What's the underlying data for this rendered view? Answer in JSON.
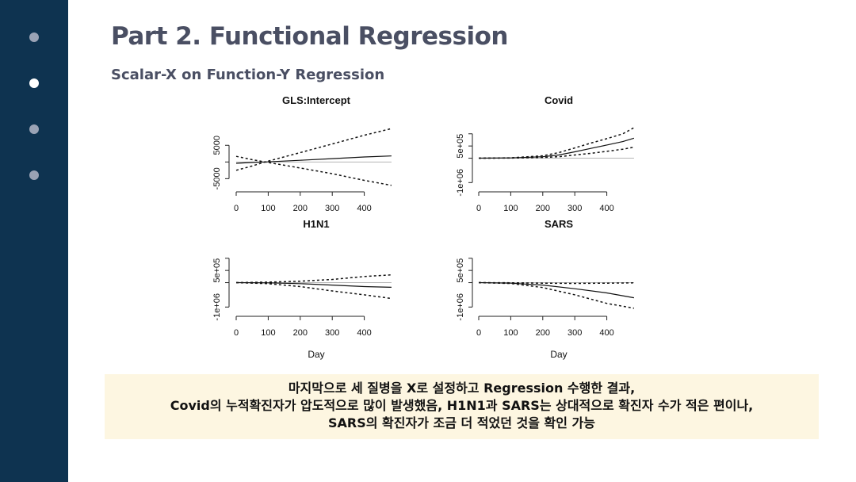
{
  "page": {
    "title": "Part 2. Functional Regression",
    "subtitle": "Scalar-X on Function-Y Regression",
    "nav_dots": [
      {
        "name": "nav-dot-1",
        "active": false
      },
      {
        "name": "nav-dot-2",
        "active": true
      },
      {
        "name": "nav-dot-3",
        "active": false
      },
      {
        "name": "nav-dot-4",
        "active": false
      }
    ],
    "note_lines": [
      "마지막으로 세 질병을 X로 설정하고 Regression 수행한 결과,",
      "Covid의 누적확진자가 압도적으로 많이 발생했음, H1N1과 SARS는 상대적으로 확진자 수가 적은 편이나,",
      "SARS의 확진자가 조금 더 적었던 것을 확인 가능"
    ],
    "colors": {
      "sidebar": "#0e3350",
      "dot_active": "#ffffff",
      "dot_inactive": "#9aa3b5",
      "title": "#4a4f63",
      "note_bg": "#fdf6e1"
    }
  },
  "chart_data": [
    {
      "type": "line",
      "title": "GLS:Intercept",
      "xlabel": "",
      "ylabel": "",
      "xlim": [
        0,
        500
      ],
      "ylim": [
        -8000,
        11000
      ],
      "xticks": [
        0,
        100,
        200,
        300,
        400
      ],
      "yticks": [
        -5000,
        0,
        5000
      ],
      "ytick_labels": [
        "-5000",
        "",
        "5000"
      ],
      "reference_line": 0,
      "x": [
        0,
        50,
        90,
        200,
        300,
        400,
        485
      ],
      "series": [
        {
          "style": "solid",
          "values": [
            -400,
            -150,
            0,
            500,
            1000,
            1500,
            1800
          ]
        },
        {
          "style": "dashed",
          "values": [
            -2500,
            -1200,
            0,
            2800,
            5400,
            8000,
            10000
          ]
        },
        {
          "style": "dashed",
          "values": [
            1700,
            700,
            0,
            -1800,
            -3500,
            -5500,
            -7000
          ]
        }
      ]
    },
    {
      "type": "line",
      "title": "Covid",
      "xlabel": "",
      "ylabel": "",
      "xlim": [
        0,
        500
      ],
      "ylim": [
        -1250000,
        1350000
      ],
      "xticks": [
        0,
        100,
        200,
        300,
        400
      ],
      "yticks": [
        -1000000,
        0,
        500000,
        1000000
      ],
      "ytick_labels": [
        "-1e+06",
        "",
        "5e+05",
        ""
      ],
      "reference_line": 0,
      "x": [
        0,
        100,
        200,
        250,
        300,
        350,
        400,
        450,
        485
      ],
      "series": [
        {
          "style": "solid",
          "values": [
            0,
            10000,
            60000,
            130000,
            260000,
            400000,
            540000,
            680000,
            820000
          ]
        },
        {
          "style": "dashed",
          "values": [
            0,
            15000,
            100000,
            230000,
            420000,
            620000,
            800000,
            1000000,
            1250000
          ]
        },
        {
          "style": "dashed",
          "values": [
            0,
            5000,
            30000,
            60000,
            130000,
            200000,
            280000,
            370000,
            450000
          ]
        }
      ]
    },
    {
      "type": "line",
      "title": "H1N1",
      "xlabel": "Day",
      "ylabel": "",
      "xlim": [
        0,
        500
      ],
      "ylim": [
        -1250000,
        1350000
      ],
      "xticks": [
        0,
        100,
        200,
        300,
        400
      ],
      "yticks": [
        -1000000,
        0,
        500000,
        1000000
      ],
      "ytick_labels": [
        "-1e+06",
        "",
        "5e+05",
        ""
      ],
      "reference_line": 0,
      "x": [
        0,
        100,
        200,
        300,
        400,
        485
      ],
      "series": [
        {
          "style": "solid",
          "values": [
            0,
            -10000,
            -40000,
            -100000,
            -160000,
            -190000
          ]
        },
        {
          "style": "dashed",
          "values": [
            0,
            20000,
            60000,
            130000,
            250000,
            320000
          ]
        },
        {
          "style": "dashed",
          "values": [
            0,
            -40000,
            -160000,
            -340000,
            -500000,
            -650000
          ]
        }
      ]
    },
    {
      "type": "line",
      "title": "SARS",
      "xlabel": "Day",
      "ylabel": "",
      "xlim": [
        0,
        500
      ],
      "ylim": [
        -1250000,
        1350000
      ],
      "xticks": [
        0,
        100,
        200,
        300,
        400
      ],
      "yticks": [
        -1000000,
        0,
        500000,
        1000000
      ],
      "ytick_labels": [
        "-1e+06",
        "",
        "5e+05",
        ""
      ],
      "reference_line": 0,
      "x": [
        0,
        100,
        200,
        300,
        400,
        485
      ],
      "series": [
        {
          "style": "solid",
          "values": [
            0,
            -20000,
            -100000,
            -250000,
            -420000,
            -620000
          ]
        },
        {
          "style": "dashed",
          "values": [
            0,
            -5000,
            -20000,
            -30000,
            -20000,
            -10000
          ]
        },
        {
          "style": "dashed",
          "values": [
            0,
            -35000,
            -200000,
            -500000,
            -850000,
            -1050000
          ]
        }
      ]
    }
  ]
}
